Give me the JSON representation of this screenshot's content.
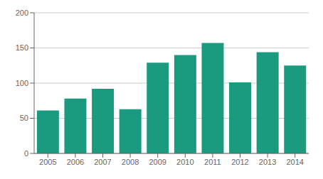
{
  "chart_data": {
    "type": "bar",
    "categories": [
      "2005",
      "2006",
      "2007",
      "2008",
      "2009",
      "2010",
      "2011",
      "2012",
      "2013",
      "2014"
    ],
    "values": [
      61,
      78,
      92,
      63,
      129,
      140,
      157,
      101,
      144,
      125
    ],
    "color": "#1a9b80",
    "ylim": [
      0,
      200
    ],
    "yticks": [
      0,
      50,
      100,
      150,
      200
    ],
    "grid": true
  }
}
